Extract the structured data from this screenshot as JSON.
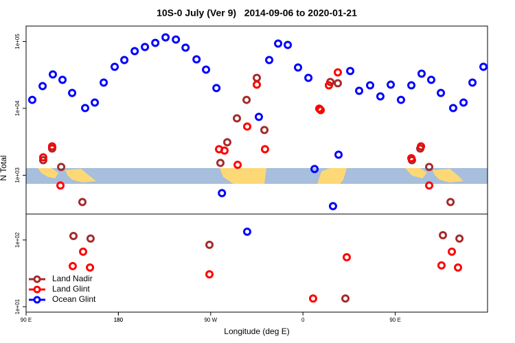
{
  "chart_data": [
    {
      "type": "scatter",
      "title": "10S-0 July (Ver 9)   2014-09-06 to 2020-01-21",
      "ylabel": "N Total",
      "xlim": [
        90,
        540
      ],
      "ylim": [
        263,
        170000
      ],
      "ylog": true,
      "yticks": [
        {
          "value": 1000,
          "label": "1e+03"
        },
        {
          "value": 10000,
          "label": "1e+04"
        },
        {
          "value": 100000,
          "label": "1e+05"
        }
      ],
      "series": [
        {
          "color": "#a52a2a",
          "x": [
            106.7,
            115.4,
            124.2,
            144.9,
            279.5,
            286.2,
            295.6,
            305.0,
            315.0,
            322.4,
            386.7,
            394.0,
            466.3,
            474.4,
            483.1,
            503.9
          ],
          "values": [
            1680,
            2510,
            1330,
            398,
            1530,
            3110,
            7100,
            13400,
            28600,
            4750,
            24800,
            23700,
            1680,
            2510,
            1330,
            398
          ]
        },
        {
          "color": "#ff0000",
          "x": [
            106.7,
            115.4,
            123.5,
            278.2,
            283.5,
            296.3,
            305.6,
            315.0,
            323.0,
            375.9,
            377.3,
            385.3,
            394.0,
            465.7,
            475.1,
            483.1
          ],
          "values": [
            1850,
            2700,
            702,
            2450,
            2340,
            1430,
            5350,
            22600,
            2450,
            9890,
            9420,
            22100,
            34500,
            1800,
            2700,
            702
          ]
        },
        {
          "color": "#0000ff",
          "x": [
            96.0,
            106.1,
            116.1,
            125.5,
            134.9,
            147.6,
            157.0,
            165.7,
            176.4,
            185.8,
            195.9,
            205.9,
            216.0,
            226.0,
            236.1,
            245.5,
            256.2,
            265.5,
            275.6,
            281.0,
            317.0,
            327.1,
            335.8,
            345.2,
            355.2,
            365.3,
            371.3,
            389.3,
            394.7,
            406.1,
            414.8,
            425.5,
            435.5,
            445.6,
            455.6,
            465.7,
            475.7,
            485.1,
            494.5,
            506.5,
            516.6,
            525.3,
            536.0
          ],
          "values": [
            13400,
            21500,
            32200,
            26700,
            17000,
            10100,
            12200,
            24300,
            41800,
            52800,
            71800,
            82800,
            95400,
            115000,
            107000,
            80900,
            54100,
            37900,
            20100,
            541,
            7450,
            52800,
            93200,
            88900,
            40800,
            28600,
            1240,
            345,
            2030,
            36200,
            18300,
            22100,
            15100,
            22600,
            13400,
            22100,
            33000,
            26700,
            17000,
            10100,
            12200,
            24300,
            41800
          ]
        }
      ]
    },
    {
      "type": "scatter",
      "xlabel": "Longitude (deg E)",
      "xlim": [
        90,
        540
      ],
      "ylim": [
        8.3,
        245
      ],
      "ylog": true,
      "xticks": [
        {
          "value": 90,
          "label": "90 E"
        },
        180,
        {
          "value": 270,
          "label": "90 W"
        },
        {
          "value": 360,
          "label": "0"
        },
        {
          "value": 450,
          "label": "90 E"
        },
        180.0001
      ],
      "yticks": [
        {
          "value": 10,
          "label": "1e+01"
        },
        {
          "value": 100,
          "label": "1e+02"
        }
      ],
      "legend": "lower left",
      "series": [
        {
          "name": "Land Nadir",
          "color": "#a52a2a",
          "x": [
            136.2,
            152.9,
            268.8,
            401.4,
            496.5,
            512.6
          ],
          "values": [
            115,
            105,
            84.7,
            13.3,
            118,
            105
          ]
        },
        {
          "name": "Land Glint",
          "color": "#ff0000",
          "x": [
            135.5,
            145.6,
            152.3,
            268.8,
            369.9,
            402.7,
            495.1,
            505.2,
            511.2
          ],
          "values": [
            40.6,
            66.8,
            38.7,
            30.6,
            13.3,
            55.2,
            41.6,
            66.8,
            38.7
          ]
        },
        {
          "name": "Ocean Glint",
          "color": "#0000ff",
          "x": [
            305.6
          ],
          "values": [
            133
          ]
        }
      ]
    }
  ]
}
